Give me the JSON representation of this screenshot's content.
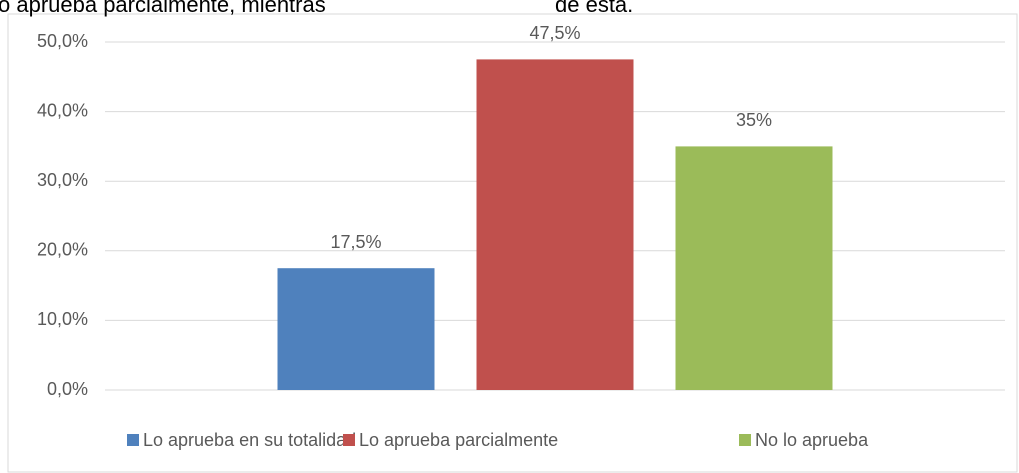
{
  "text_fragments": [
    "o aprueba parcialmente, mientras",
    "de esta."
  ],
  "chart_data": {
    "type": "bar",
    "categories": [
      null
    ],
    "series": [
      {
        "name": "Lo aprueba en su totalidad",
        "color": "#4f81bd",
        "values": [
          17.5
        ],
        "value_labels": [
          "17,5%"
        ]
      },
      {
        "name": "Lo aprueba parcialmente",
        "color": "#c0504d",
        "values": [
          47.5
        ],
        "value_labels": [
          "47,5%"
        ]
      },
      {
        "name": "No lo aprueba",
        "color": "#9bbb59",
        "values": [
          35
        ],
        "value_labels": [
          "35%"
        ]
      }
    ],
    "ylim": [
      0,
      50
    ],
    "yticks": [
      {
        "value": 0,
        "label": "0,0%"
      },
      {
        "value": 10,
        "label": "10,0%"
      },
      {
        "value": 20,
        "label": "20,0%"
      },
      {
        "value": 30,
        "label": "30,0%"
      },
      {
        "value": 40,
        "label": "40,0%"
      },
      {
        "value": 50,
        "label": "50,0%"
      }
    ],
    "grid": true,
    "legend": "bottom"
  }
}
